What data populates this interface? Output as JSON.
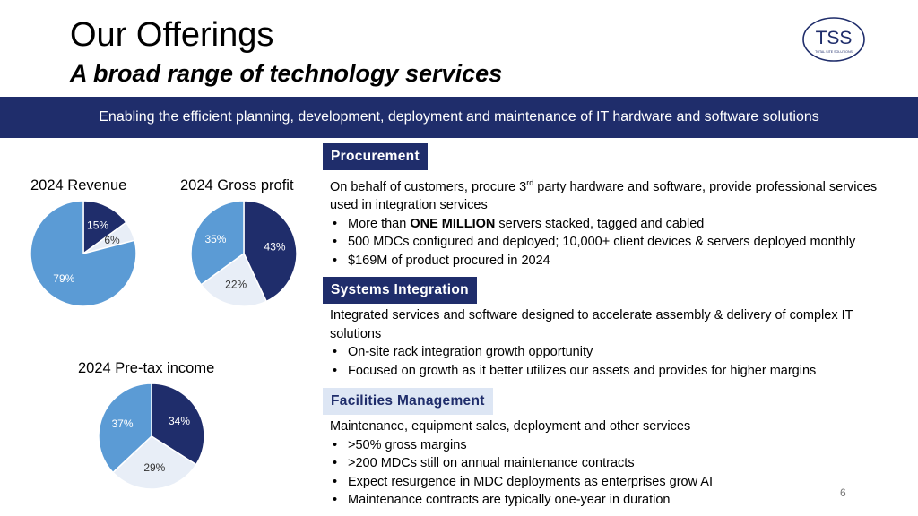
{
  "header": {
    "title": "Our Offerings",
    "subtitle": "A broad range of technology services",
    "logo_text": "TSS",
    "logo_caption": "TOTAL SITE SOLUTIONS"
  },
  "banner": "Enabling the efficient planning, development, deployment and maintenance of IT hardware and software solutions",
  "colors": {
    "navy": "#1f2d6b",
    "mid_blue": "#5b9bd5",
    "pale": "#e8eef7",
    "head_light": "#dde6f4"
  },
  "charts": [
    {
      "title": "2024 Revenue",
      "type": "pie",
      "slices": [
        {
          "label": "15%",
          "value": 15,
          "color": "#1f2d6b",
          "text_color": "#ffffff"
        },
        {
          "label": "6%",
          "value": 6,
          "color": "#e8eef7",
          "text_color": "#333333"
        },
        {
          "label": "79%",
          "value": 79,
          "color": "#5b9bd5",
          "text_color": "#ffffff"
        }
      ]
    },
    {
      "title": "2024 Gross profit",
      "type": "pie",
      "slices": [
        {
          "label": "43%",
          "value": 43,
          "color": "#1f2d6b",
          "text_color": "#ffffff"
        },
        {
          "label": "22%",
          "value": 22,
          "color": "#e8eef7",
          "text_color": "#333333"
        },
        {
          "label": "35%",
          "value": 35,
          "color": "#5b9bd5",
          "text_color": "#ffffff"
        }
      ]
    },
    {
      "title": "2024 Pre-tax income",
      "type": "pie",
      "slices": [
        {
          "label": "34%",
          "value": 34,
          "color": "#1f2d6b",
          "text_color": "#ffffff"
        },
        {
          "label": "29%",
          "value": 29,
          "color": "#e8eef7",
          "text_color": "#333333"
        },
        {
          "label": "37%",
          "value": 37,
          "color": "#5b9bd5",
          "text_color": "#ffffff"
        }
      ]
    }
  ],
  "sections": {
    "procurement": {
      "heading": "Procurement",
      "intro_before": "On behalf of customers, procure 3",
      "intro_sup": "rd",
      "intro_after": " party hardware and software, provide professional services used in integration services",
      "bullet1_pre": "More than ",
      "bullet1_bold": "ONE MILLION",
      "bullet1_post": " servers stacked, tagged and cabled",
      "bullets": [
        "500 MDCs configured and deployed; 10,000+ client devices & servers deployed monthly",
        "$169M of product procured in 2024"
      ]
    },
    "systems_integration": {
      "heading": "Systems Integration",
      "intro": "Integrated services and software designed to accelerate assembly & delivery of complex IT solutions",
      "bullets": [
        "On-site rack integration growth opportunity",
        "Focused on growth as it better utilizes our assets and provides for higher margins"
      ]
    },
    "facilities_management": {
      "heading": "Facilities Management",
      "intro": "Maintenance, equipment sales, deployment and other services",
      "bullets": [
        ">50% gross margins",
        ">200 MDCs still on annual maintenance contracts",
        "Expect resurgence in MDC deployments as enterprises grow AI",
        "Maintenance contracts are typically one-year in duration"
      ]
    }
  },
  "page_number": "6"
}
